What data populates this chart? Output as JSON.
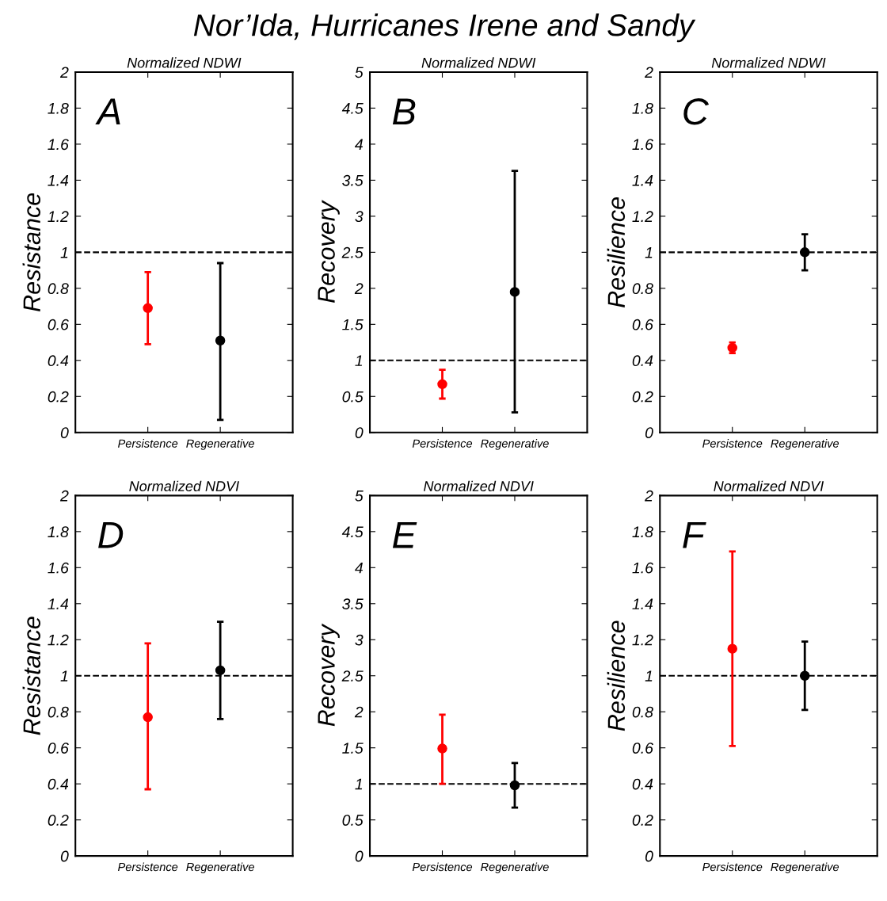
{
  "chart_data": [
    {
      "type": "scatter",
      "title": "Normalized NDWI",
      "ylabel": "Resistance",
      "categories": [
        "Persistence",
        "Regenerative"
      ],
      "values": [
        0.69,
        0.51
      ],
      "colors": [
        "#ff0000",
        "#000000"
      ],
      "errors": [
        [
          0.49,
          0.89
        ],
        [
          0.07,
          0.94
        ]
      ],
      "ylim": [
        0,
        2
      ],
      "yticks": [
        0,
        0.2,
        0.4,
        0.6,
        0.8,
        1,
        1.2,
        1.4,
        1.6,
        1.8,
        2
      ],
      "ref_lines": [
        {
          "axis": "y",
          "value": 1,
          "color": "#000000",
          "line_style": "dashed"
        }
      ],
      "marker": "circle",
      "grid": false,
      "annotations": [
        "Nor’Ida, Hurricanes Irene and Sandy",
        "A"
      ]
    },
    {
      "type": "scatter",
      "title": "Normalized NDWI",
      "ylabel": "Recovery",
      "categories": [
        "Persistence",
        "Regenerative"
      ],
      "values": [
        0.67,
        1.95
      ],
      "colors": [
        "#ff0000",
        "#000000"
      ],
      "errors": [
        [
          0.47,
          0.87
        ],
        [
          0.28,
          3.63
        ]
      ],
      "ylim": [
        0,
        5
      ],
      "yticks": [
        0,
        0.5,
        1,
        1.5,
        2,
        2.5,
        3,
        3.5,
        4,
        4.5,
        5
      ],
      "ref_lines": [
        {
          "axis": "y",
          "value": 1,
          "color": "#000000",
          "line_style": "dashed"
        }
      ],
      "marker": "circle",
      "grid": false,
      "annotations": [
        "B"
      ]
    },
    {
      "type": "scatter",
      "title": "Normalized NDWI",
      "ylabel": "Resilience",
      "categories": [
        "Persistence",
        "Regenerative"
      ],
      "values": [
        0.47,
        1.0
      ],
      "colors": [
        "#ff0000",
        "#000000"
      ],
      "errors": [
        [
          0.44,
          0.5
        ],
        [
          0.9,
          1.1
        ]
      ],
      "ylim": [
        0,
        2
      ],
      "yticks": [
        0,
        0.2,
        0.4,
        0.6,
        0.8,
        1,
        1.2,
        1.4,
        1.6,
        1.8,
        2
      ],
      "ref_lines": [
        {
          "axis": "y",
          "value": 1,
          "color": "#000000",
          "line_style": "dashed"
        }
      ],
      "marker": "circle",
      "grid": false,
      "annotations": [
        "C"
      ]
    },
    {
      "type": "scatter",
      "title": "Normalized NDVI",
      "ylabel": "Resistance",
      "categories": [
        "Persistence",
        "Regenerative"
      ],
      "values": [
        0.77,
        1.03
      ],
      "colors": [
        "#ff0000",
        "#000000"
      ],
      "errors": [
        [
          0.37,
          1.18
        ],
        [
          0.76,
          1.3
        ]
      ],
      "ylim": [
        0,
        2
      ],
      "yticks": [
        0,
        0.2,
        0.4,
        0.6,
        0.8,
        1,
        1.2,
        1.4,
        1.6,
        1.8,
        2
      ],
      "ref_lines": [
        {
          "axis": "y",
          "value": 1,
          "color": "#000000",
          "line_style": "dashed"
        }
      ],
      "marker": "circle",
      "grid": false,
      "annotations": [
        "D"
      ]
    },
    {
      "type": "scatter",
      "title": "Normalized NDVI",
      "ylabel": "Recovery",
      "categories": [
        "Persistence",
        "Regenerative"
      ],
      "values": [
        1.49,
        0.98
      ],
      "colors": [
        "#ff0000",
        "#000000"
      ],
      "errors": [
        [
          1.0,
          1.96
        ],
        [
          0.67,
          1.29
        ]
      ],
      "ylim": [
        0,
        5
      ],
      "yticks": [
        0,
        0.5,
        1,
        1.5,
        2,
        2.5,
        3,
        3.5,
        4,
        4.5,
        5
      ],
      "ref_lines": [
        {
          "axis": "y",
          "value": 1,
          "color": "#000000",
          "line_style": "dashed"
        }
      ],
      "marker": "circle",
      "grid": false,
      "annotations": [
        "E"
      ]
    },
    {
      "type": "scatter",
      "title": "Normalized NDVI",
      "ylabel": "Resilience",
      "categories": [
        "Persistence",
        "Regenerative"
      ],
      "values": [
        1.15,
        1.0
      ],
      "colors": [
        "#ff0000",
        "#000000"
      ],
      "errors": [
        [
          0.61,
          1.69
        ],
        [
          0.81,
          1.19
        ]
      ],
      "ylim": [
        0,
        2
      ],
      "yticks": [
        0,
        0.2,
        0.4,
        0.6,
        0.8,
        1,
        1.2,
        1.4,
        1.6,
        1.8,
        2
      ],
      "ref_lines": [
        {
          "axis": "y",
          "value": 1,
          "color": "#000000",
          "line_style": "dashed"
        }
      ],
      "marker": "circle",
      "grid": false,
      "annotations": [
        "F"
      ]
    }
  ]
}
